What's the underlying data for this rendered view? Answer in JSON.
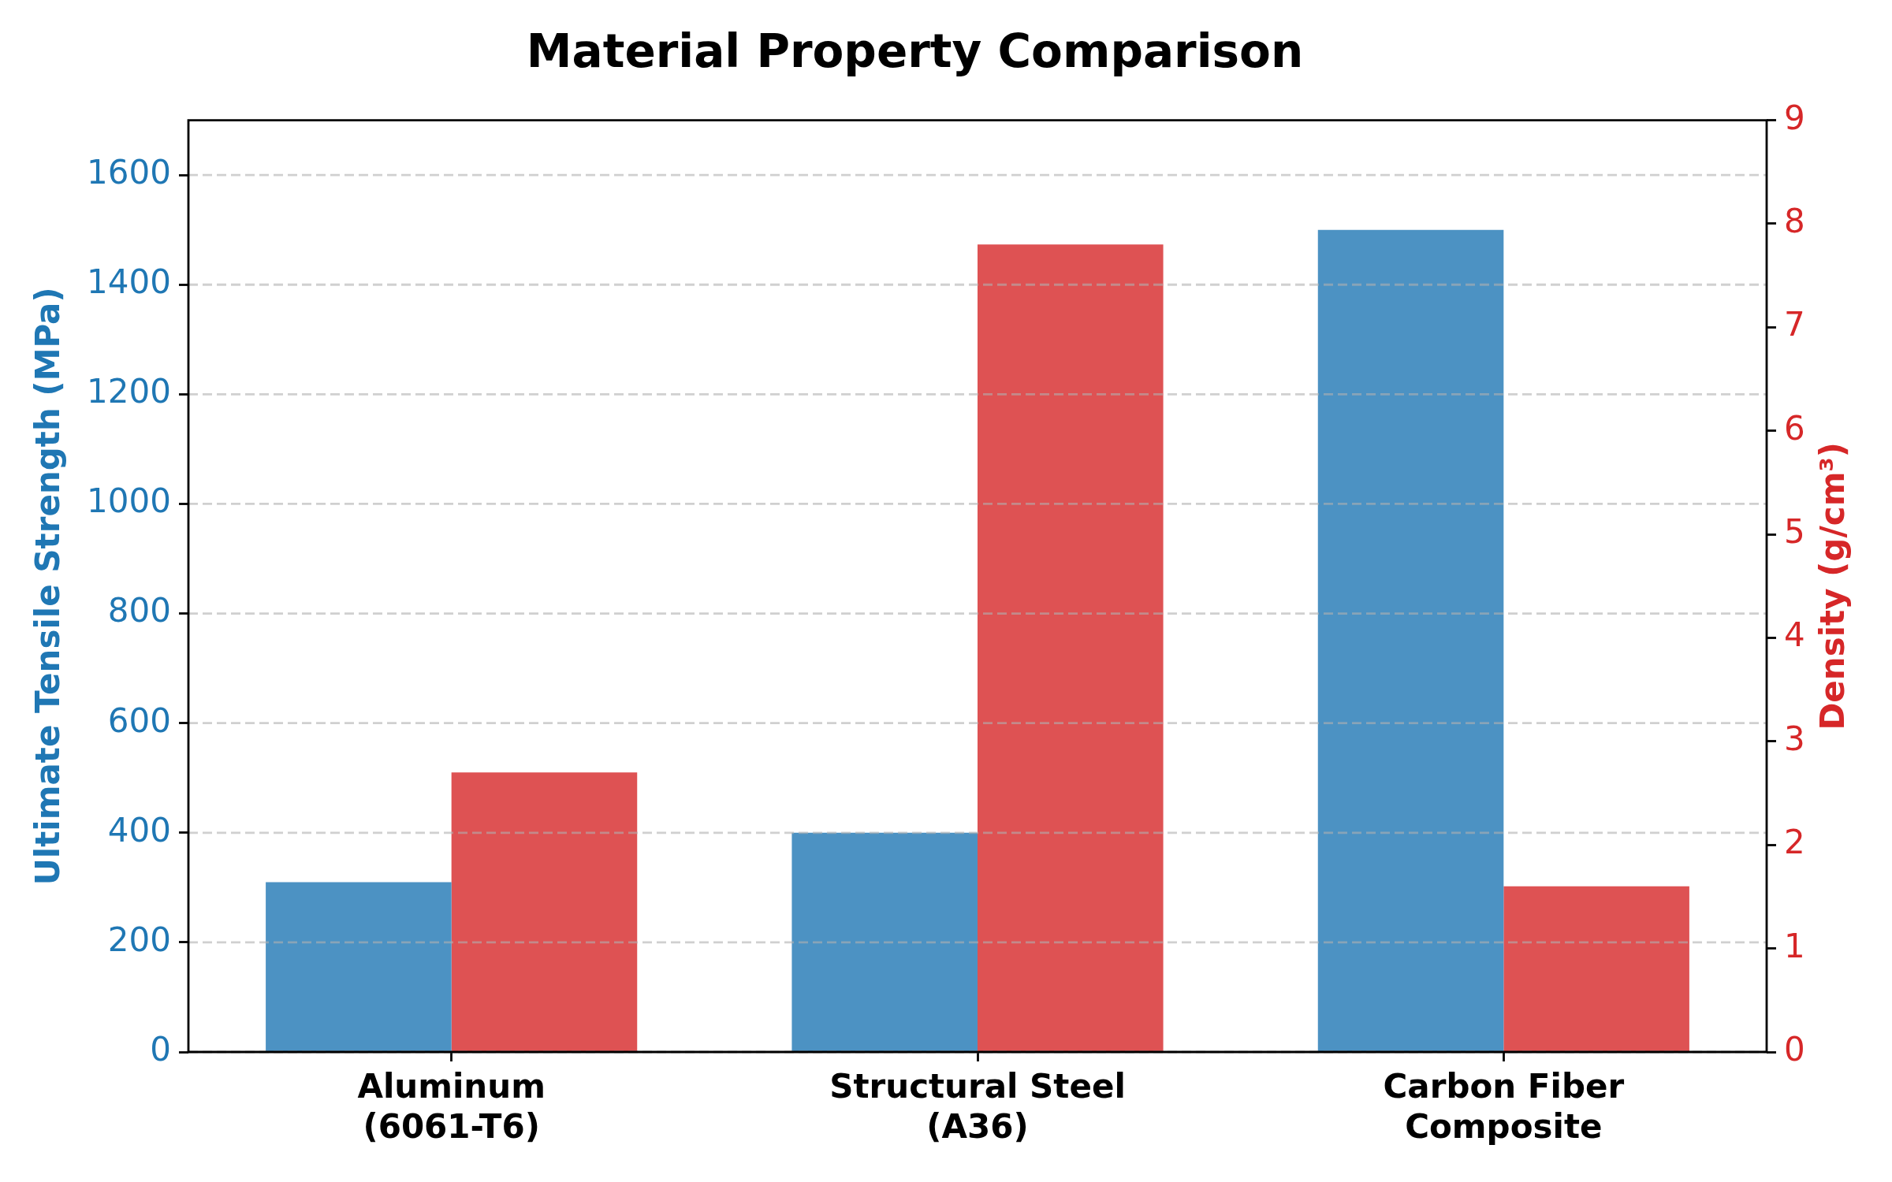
{
  "chart_data": {
    "type": "bar",
    "title": "Material Property Comparison",
    "ylabel": "Ultimate Tensile Strength (MPa)",
    "y2label": "Density (g/cm³)",
    "categories": [
      "Aluminum\n(6061-T6)",
      "Structural Steel\n(A36)",
      "Carbon Fiber\nComposite"
    ],
    "series": [
      {
        "color": "#4c92c3",
        "values": [
          310,
          400,
          1500
        ]
      },
      {
        "color": "#de5253",
        "values": [
          2.7,
          7.8,
          1.6
        ],
        "axis": "y2"
      }
    ],
    "ylim": [
      0,
      1700
    ],
    "yticks": [
      0,
      200,
      400,
      600,
      800,
      1000,
      1200,
      1400,
      1600
    ],
    "y2lim": [
      0,
      9
    ],
    "y2ticks": [
      0,
      1,
      2,
      3,
      4,
      5,
      6,
      7,
      8,
      9
    ],
    "grid": "y"
  }
}
